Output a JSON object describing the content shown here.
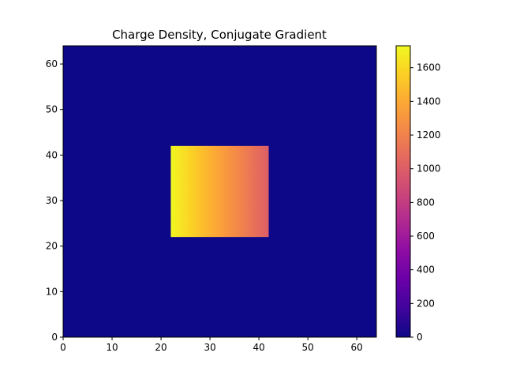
{
  "chart_data": {
    "type": "heatmap",
    "title": "Charge Density, Conjugate Gradient",
    "xlabel": "",
    "ylabel": "",
    "xlim": [
      0,
      64
    ],
    "ylim": [
      0,
      64
    ],
    "x_ticks": [
      "0",
      "10",
      "20",
      "30",
      "40",
      "50",
      "60"
    ],
    "y_ticks": [
      "0",
      "10",
      "20",
      "30",
      "40",
      "50",
      "60"
    ],
    "grid": false,
    "colormap": "plasma",
    "background_value": 0,
    "region": {
      "x_range": [
        22,
        42
      ],
      "y_range": [
        22,
        42
      ],
      "value_at_x_start": 1720,
      "value_at_x_end": 1000,
      "variation": "decreasing along x"
    },
    "colorbar": {
      "range": [
        0,
        1730
      ],
      "ticks": [
        "0",
        "200",
        "400",
        "600",
        "800",
        "1000",
        "1200",
        "1400",
        "1600"
      ],
      "placement": "right"
    }
  }
}
